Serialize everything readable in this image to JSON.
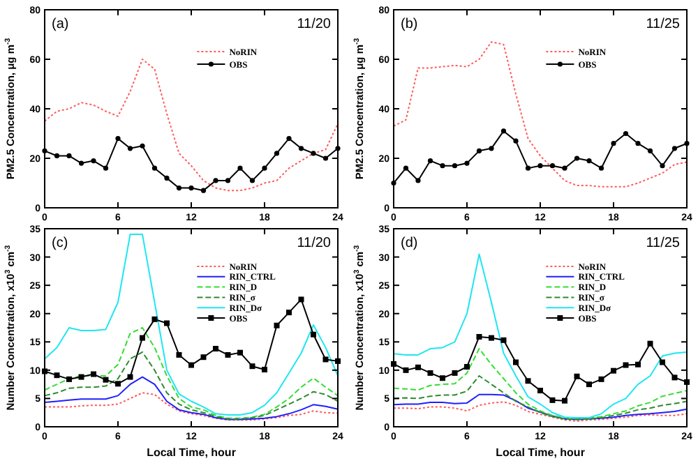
{
  "chart_data": [
    {
      "type": "line",
      "ylabel": "PM2.5 Concentration, μg m$^{-3}$",
      "annotations": [
        "(a)",
        "11/20"
      ],
      "x": [
        0,
        1,
        2,
        3,
        4,
        5,
        6,
        7,
        8,
        9,
        10,
        11,
        12,
        13,
        14,
        15,
        16,
        17,
        18,
        19,
        20,
        21,
        22,
        23,
        24
      ],
      "xlim": [
        0,
        24
      ],
      "xticks": [
        0,
        6,
        12,
        18,
        24
      ],
      "ylim": [
        0,
        80
      ],
      "yticks": [
        0,
        20,
        40,
        60,
        80
      ],
      "legend": "top right",
      "series": [
        {
          "name": "NoRIN",
          "color": "#ff5a5a",
          "line_style": "dotted",
          "marker": "none",
          "values": [
            35,
            39,
            40,
            42.5,
            41.5,
            39,
            37,
            47,
            60,
            56,
            38,
            22,
            17,
            11,
            8,
            7,
            7,
            8,
            10,
            11,
            16,
            19,
            22,
            23.5,
            34
          ]
        },
        {
          "name": "OBS",
          "color": "#000000",
          "line_style": "solid",
          "marker": "circle",
          "values": [
            23,
            21,
            21,
            18,
            19,
            16,
            28,
            24,
            25,
            16,
            12,
            8,
            8,
            7,
            11,
            11,
            16,
            11,
            16,
            22,
            28,
            24,
            22,
            20,
            24
          ]
        }
      ]
    },
    {
      "type": "line",
      "ylabel": "PM2.5 Concentration, μg m$^{-3}$",
      "annotations": [
        "(b)",
        "11/25"
      ],
      "x": [
        0,
        1,
        2,
        3,
        4,
        5,
        6,
        7,
        8,
        9,
        10,
        11,
        12,
        13,
        14,
        15,
        16,
        17,
        18,
        19,
        20,
        21,
        22,
        23,
        24
      ],
      "xlim": [
        0,
        24
      ],
      "xticks": [
        0,
        6,
        12,
        18,
        24
      ],
      "ylim": [
        0,
        80
      ],
      "yticks": [
        0,
        20,
        40,
        60,
        80
      ],
      "legend": "top right",
      "series": [
        {
          "name": "NoRIN",
          "color": "#ff5a5a",
          "line_style": "dotted",
          "marker": "none",
          "values": [
            33,
            35.5,
            56.5,
            56.5,
            57,
            57.5,
            57,
            60,
            67,
            66,
            46,
            28,
            21,
            16,
            11,
            9,
            9,
            8.5,
            8.5,
            8.5,
            10,
            12,
            14,
            17.5,
            18.5
          ]
        },
        {
          "name": "OBS",
          "color": "#000000",
          "line_style": "solid",
          "marker": "circle",
          "values": [
            10,
            16,
            11,
            19,
            17,
            17,
            18,
            23,
            24,
            31,
            27,
            16,
            17,
            17,
            16,
            20,
            19,
            16,
            26,
            30,
            26,
            23,
            17,
            24,
            26
          ]
        }
      ]
    },
    {
      "type": "line",
      "xlabel": "Local Time, hour",
      "ylabel": "Number Concentration, x10$^{3}$ cm$^{-3}$",
      "annotations": [
        "(c)",
        "11/20"
      ],
      "x": [
        0,
        1,
        2,
        3,
        4,
        5,
        6,
        7,
        8,
        9,
        10,
        11,
        12,
        13,
        14,
        15,
        16,
        17,
        18,
        19,
        20,
        21,
        22,
        23,
        24
      ],
      "xlim": [
        0,
        24
      ],
      "xticks": [
        0,
        6,
        12,
        18,
        24
      ],
      "ylim": [
        0,
        35
      ],
      "yticks": [
        0,
        5,
        10,
        15,
        20,
        25,
        30,
        35
      ],
      "legend": "top right",
      "series": [
        {
          "name": "NoRIN",
          "color": "#ff5a5a",
          "line_style": "dotted",
          "marker": "none",
          "values": [
            3.5,
            3.5,
            3.5,
            3.7,
            3.8,
            3.8,
            4,
            5,
            6,
            5.7,
            4,
            2.8,
            2.3,
            2,
            1.5,
            1.2,
            1.2,
            1.2,
            1.4,
            1.6,
            2,
            2.2,
            2.8,
            2.5,
            2.4
          ]
        },
        {
          "name": "RIN_CTRL",
          "color": "#1f1fff",
          "line_style": "solid",
          "marker": "none",
          "values": [
            4.3,
            4.5,
            4.7,
            4.9,
            4.9,
            4.9,
            5.5,
            7.5,
            8.8,
            7.5,
            4.5,
            3,
            2.5,
            2.2,
            1.6,
            1.3,
            1.3,
            1.4,
            1.5,
            1.8,
            2.3,
            3,
            3.9,
            3.6,
            3.1
          ]
        },
        {
          "name": "RIN_D",
          "color": "#33dd33",
          "line_style": "dashed",
          "marker": "none",
          "values": [
            6.5,
            7.5,
            8.5,
            9,
            9,
            9,
            11,
            16.5,
            17.5,
            14,
            9,
            5,
            3.5,
            3,
            2,
            1.5,
            1.5,
            1.7,
            2.2,
            3.5,
            5,
            7,
            8.6,
            7,
            5.5
          ]
        },
        {
          "name": "RIN_σ",
          "color": "#2e8b2e",
          "line_style": "dashed",
          "marker": "none",
          "values": [
            5.5,
            6,
            6.8,
            7,
            7,
            7.2,
            8.5,
            12,
            13.2,
            10,
            6,
            4,
            3,
            2.5,
            1.8,
            1.4,
            1.4,
            1.6,
            2,
            3,
            4,
            5,
            6.2,
            5.7,
            4.5
          ]
        },
        {
          "name": "RIN_Dσ",
          "color": "#1ee6f0",
          "line_style": "solid",
          "marker": "none",
          "values": [
            12,
            14,
            17.5,
            17,
            17,
            17.2,
            22,
            34,
            34,
            22,
            10,
            5.8,
            4.5,
            3.5,
            2.3,
            2.1,
            2.1,
            2.5,
            3.8,
            6,
            9.5,
            13,
            18,
            14,
            9
          ]
        },
        {
          "name": "OBS",
          "color": "#000000",
          "line_style": "solid",
          "marker": "square",
          "values": [
            9.8,
            9.1,
            8.4,
            8.8,
            9.3,
            8.3,
            7.6,
            8.8,
            15.7,
            19,
            18.3,
            12.7,
            10.9,
            12.3,
            13.8,
            12.7,
            13.1,
            10.7,
            10.1,
            17.9,
            20.2,
            22.5,
            16.3,
            11.9,
            11.6
          ]
        }
      ]
    },
    {
      "type": "line",
      "xlabel": "Local Time, hour",
      "ylabel": "Number Concentration, x10$^{3}$ cm$^{-3}$",
      "annotations": [
        "(d)",
        "11/25"
      ],
      "x": [
        0,
        1,
        2,
        3,
        4,
        5,
        6,
        7,
        8,
        9,
        10,
        11,
        12,
        13,
        14,
        15,
        16,
        17,
        18,
        19,
        20,
        21,
        22,
        23,
        24
      ],
      "xlim": [
        0,
        24
      ],
      "xticks": [
        0,
        6,
        12,
        18,
        24
      ],
      "ylim": [
        0,
        35
      ],
      "yticks": [
        0,
        5,
        10,
        15,
        20,
        25,
        30,
        35
      ],
      "legend": "top right",
      "series": [
        {
          "name": "NoRIN",
          "color": "#ff5a5a",
          "line_style": "dotted",
          "marker": "none",
          "values": [
            3.3,
            3.3,
            3.2,
            3.5,
            3.5,
            3.3,
            2.8,
            3.8,
            4.2,
            4.4,
            3.8,
            2.7,
            2.2,
            1.7,
            1.2,
            1,
            1.2,
            1.3,
            1.5,
            1.7,
            2,
            2.1,
            2,
            2,
            2.3
          ]
        },
        {
          "name": "RIN_CTRL",
          "color": "#1f1fff",
          "line_style": "solid",
          "marker": "none",
          "values": [
            3.9,
            4,
            4,
            4.3,
            4.3,
            4.1,
            4.2,
            5.7,
            5.7,
            5.6,
            4.6,
            3.3,
            2.6,
            1.9,
            1.4,
            1.3,
            1.4,
            1.5,
            1.7,
            2,
            2.2,
            2.3,
            2.5,
            2.7,
            3.1
          ]
        },
        {
          "name": "RIN_D",
          "color": "#33dd33",
          "line_style": "dashed",
          "marker": "none",
          "values": [
            6.8,
            6.7,
            6.5,
            7.3,
            7.5,
            7.6,
            9.5,
            13.8,
            11,
            8.5,
            6,
            4,
            2.8,
            2,
            1.6,
            1.5,
            1.5,
            1.8,
            2.3,
            2.8,
            3.7,
            4.3,
            5.4,
            5.9,
            6.4
          ]
        },
        {
          "name": "RIN_σ",
          "color": "#2e8b2e",
          "line_style": "dashed",
          "marker": "none",
          "values": [
            5,
            5.1,
            5,
            5.4,
            5.6,
            5.6,
            6.3,
            9,
            7.5,
            6,
            4.5,
            3.5,
            2.5,
            1.8,
            1.4,
            1.3,
            1.4,
            1.6,
            2,
            2.4,
            3,
            3.3,
            3.8,
            4.1,
            4.5
          ]
        },
        {
          "name": "RIN_Dσ",
          "color": "#1ee6f0",
          "line_style": "solid",
          "marker": "none",
          "values": [
            12.9,
            12.7,
            12.7,
            13.8,
            14,
            15,
            20,
            30.5,
            22,
            13,
            9,
            5.3,
            4,
            2.5,
            1.7,
            1.6,
            1.6,
            2.3,
            4,
            5,
            7.5,
            9,
            12.5,
            13,
            13.2
          ]
        },
        {
          "name": "OBS",
          "color": "#000000",
          "line_style": "solid",
          "marker": "square",
          "values": [
            11.1,
            10,
            10.5,
            9.5,
            8.6,
            9.5,
            10.6,
            15.9,
            15.7,
            15.3,
            11.4,
            8.1,
            6.4,
            4.7,
            4.6,
            8.9,
            7.5,
            8.4,
            9.9,
            10.9,
            11,
            14.7,
            11.4,
            8.7,
            7.9
          ]
        }
      ]
    }
  ]
}
